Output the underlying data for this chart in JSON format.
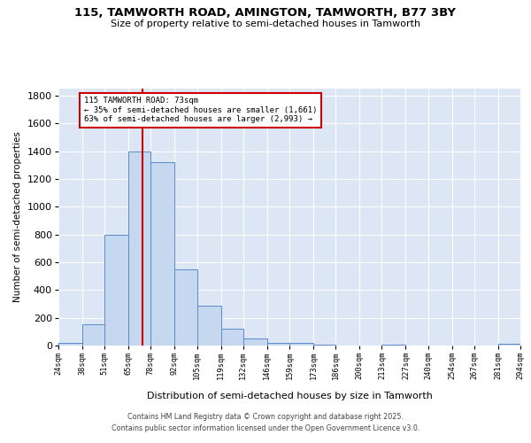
{
  "title1": "115, TAMWORTH ROAD, AMINGTON, TAMWORTH, B77 3BY",
  "title2": "Size of property relative to semi-detached houses in Tamworth",
  "xlabel": "Distribution of semi-detached houses by size in Tamworth",
  "ylabel": "Number of semi-detached properties",
  "footer1": "Contains HM Land Registry data © Crown copyright and database right 2025.",
  "footer2": "Contains public sector information licensed under the Open Government Licence v3.0.",
  "annotation_title": "115 TAMWORTH ROAD: 73sqm",
  "annotation_line1": "← 35% of semi-detached houses are smaller (1,661)",
  "annotation_line2": "63% of semi-detached houses are larger (2,993) →",
  "property_size": 73,
  "bar_lefts": [
    24,
    38,
    51,
    65,
    78,
    92,
    105,
    119,
    132,
    146,
    159,
    173,
    186,
    200,
    213,
    227,
    240,
    254,
    267,
    281
  ],
  "bar_widths": [
    14,
    13,
    14,
    13,
    14,
    13,
    14,
    13,
    14,
    13,
    14,
    13,
    14,
    13,
    14,
    13,
    14,
    13,
    14,
    13
  ],
  "bar_values": [
    20,
    150,
    800,
    1400,
    1320,
    550,
    290,
    120,
    50,
    20,
    20,
    5,
    0,
    0,
    5,
    0,
    0,
    0,
    0,
    10
  ],
  "bar_color": "#c5d8f0",
  "bar_edge_color": "#5b8ac7",
  "bg_color": "#dce6f5",
  "vline_color": "#cc0000",
  "vline_x": 73,
  "ylim": [
    0,
    1850
  ],
  "xlim": [
    24,
    294
  ],
  "tick_labels": [
    "24sqm",
    "38sqm",
    "51sqm",
    "65sqm",
    "78sqm",
    "92sqm",
    "105sqm",
    "119sqm",
    "132sqm",
    "146sqm",
    "159sqm",
    "173sqm",
    "186sqm",
    "200sqm",
    "213sqm",
    "227sqm",
    "240sqm",
    "254sqm",
    "267sqm",
    "281sqm",
    "294sqm"
  ],
  "tick_positions": [
    24,
    38,
    51,
    65,
    78,
    92,
    105,
    119,
    132,
    146,
    159,
    173,
    186,
    200,
    213,
    227,
    240,
    254,
    267,
    281,
    294
  ],
  "yticks": [
    0,
    200,
    400,
    600,
    800,
    1000,
    1200,
    1400,
    1600,
    1800
  ],
  "annotation_box_color": "#cc0000"
}
